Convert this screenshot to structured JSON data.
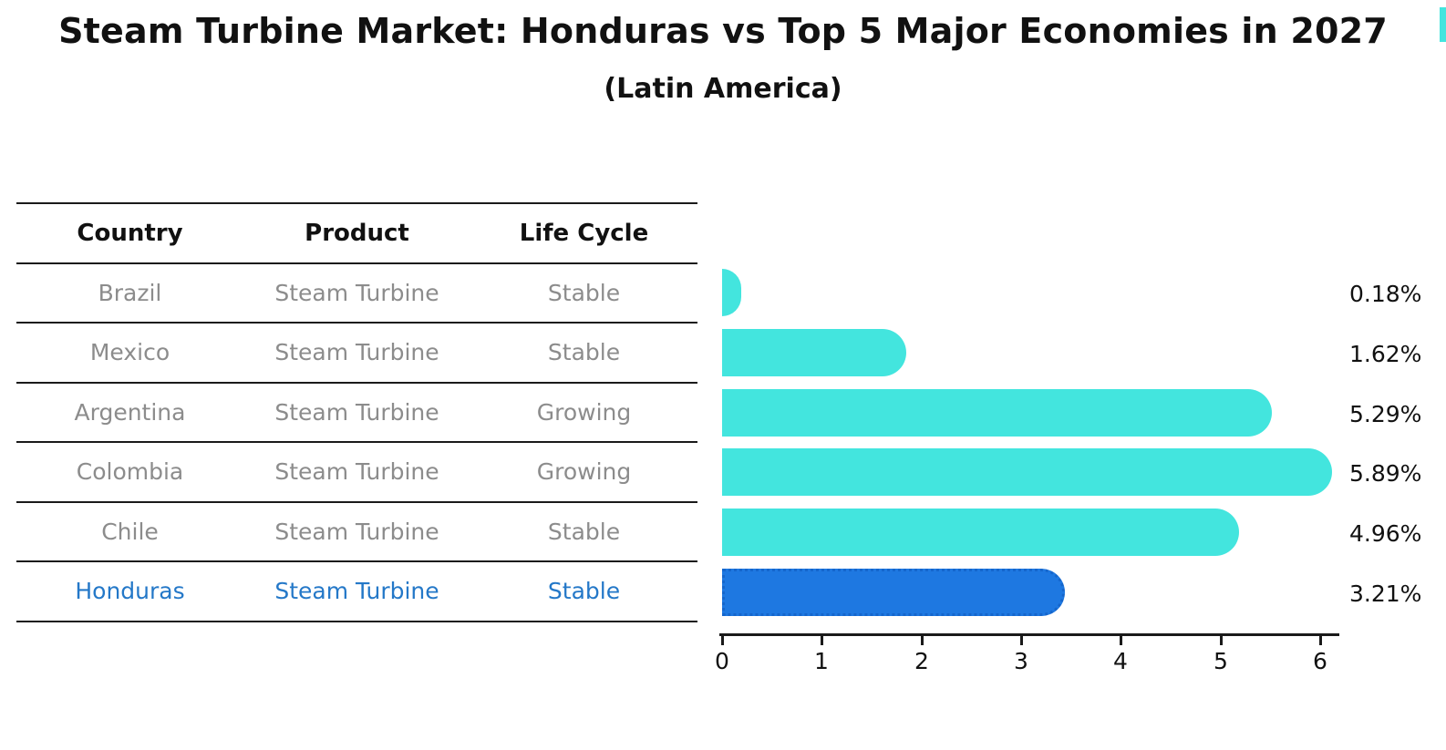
{
  "title": "Steam Turbine Market: Honduras vs Top 5 Major Economies in 2027",
  "subtitle": "(Latin America)",
  "table": {
    "headers": [
      "Country",
      "Product",
      "Life Cycle"
    ],
    "rows": [
      {
        "country": "Brazil",
        "product": "Steam Turbine",
        "life_cycle": "Stable",
        "highlighted": false
      },
      {
        "country": "Mexico",
        "product": "Steam Turbine",
        "life_cycle": "Stable",
        "highlighted": false
      },
      {
        "country": "Argentina",
        "product": "Steam Turbine",
        "life_cycle": "Growing",
        "highlighted": false
      },
      {
        "country": "Colombia",
        "product": "Steam Turbine",
        "life_cycle": "Growing",
        "highlighted": false
      },
      {
        "country": "Chile",
        "product": "Steam Turbine",
        "life_cycle": "Stable",
        "highlighted": false
      },
      {
        "country": "Honduras",
        "product": "Steam Turbine",
        "life_cycle": "Stable",
        "highlighted": true
      }
    ]
  },
  "chart_data": {
    "type": "bar",
    "orientation": "horizontal",
    "title": "Steam Turbine Market: Honduras vs Top 5 Major Economies in 2027",
    "subtitle": "(Latin America)",
    "categories": [
      "Brazil",
      "Mexico",
      "Argentina",
      "Colombia",
      "Chile",
      "Honduras"
    ],
    "values": [
      0.18,
      1.62,
      5.29,
      5.89,
      4.96,
      3.21
    ],
    "value_labels": [
      "0.18%",
      "1.62%",
      "5.29%",
      "5.89%",
      "4.96%",
      "3.21%"
    ],
    "unit": "%",
    "x_ticks": [
      "0",
      "1",
      "2",
      "3",
      "4",
      "5",
      "6"
    ],
    "xlim": [
      0,
      6.2
    ],
    "grid": false,
    "legend": "none",
    "highlight_category": "Honduras",
    "highlight_index": 5
  },
  "colors": {
    "background": "#FFFFFF",
    "bar": "#43E5DE",
    "highlight_bar": "#1E78E1",
    "highlight_border": "#1566CC",
    "highlight_text": "#2478C8",
    "row_text": "#8C8C8C",
    "axis": "#1A1A1A",
    "label_text": "#111111",
    "corner_accent": "#43E5DE"
  }
}
